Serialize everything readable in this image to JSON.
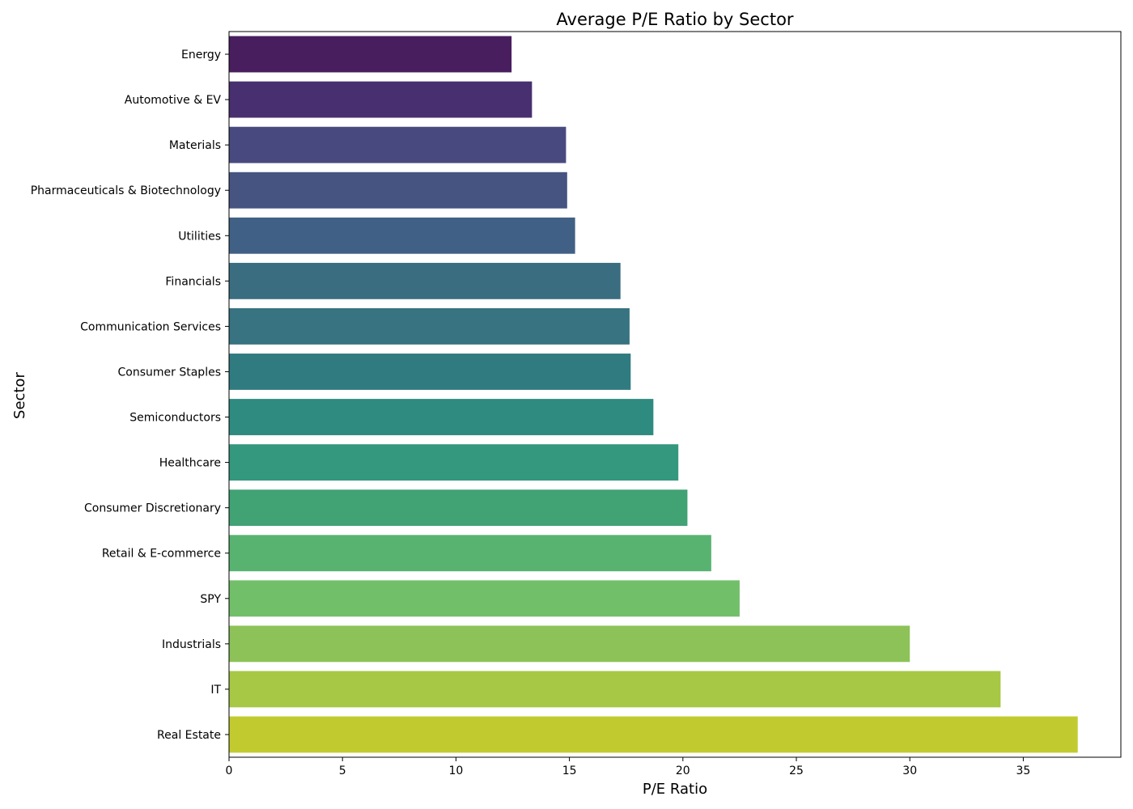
{
  "chart_data": {
    "type": "bar",
    "orientation": "horizontal",
    "title": "Average P/E Ratio by Sector",
    "xlabel": "P/E Ratio",
    "ylabel": "Sector",
    "xlim": [
      0,
      39.3
    ],
    "xticks": [
      "0",
      "5",
      "10",
      "15",
      "20",
      "25",
      "30",
      "35"
    ],
    "grid": false,
    "legend": "none",
    "categories": [
      "Energy",
      "Automotive & EV",
      "Materials",
      "Pharmaceuticals & Biotechnology",
      "Utilities",
      "Financials",
      "Communication Services",
      "Consumer Staples",
      "Semiconductors",
      "Healthcare",
      "Consumer Discretionary",
      "Retail & E-commerce",
      "SPY",
      "Industrials",
      "IT",
      "Real Estate"
    ],
    "values": [
      12.45,
      13.35,
      14.85,
      14.9,
      15.25,
      17.25,
      17.65,
      17.7,
      18.7,
      19.8,
      20.2,
      21.25,
      22.5,
      30.0,
      34.0,
      37.4
    ],
    "colors": [
      "#481e5e",
      "#482f6f",
      "#484a7f",
      "#455480",
      "#416085",
      "#3a6d80",
      "#377380",
      "#307b80",
      "#2f8a7f",
      "#34987e",
      "#41a274",
      "#58b371",
      "#72bf6a",
      "#8cc257",
      "#a6c845",
      "#c1cb30"
    ]
  }
}
